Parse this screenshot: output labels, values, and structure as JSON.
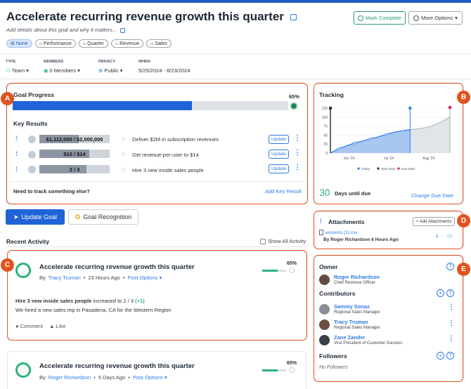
{
  "goal": {
    "title": "Accelerate recurring revenue growth this quarter",
    "subtitle": "Add details about this goal and why it matters...",
    "mark_complete": "Mark Complete",
    "more_options": "More Options",
    "tags": [
      "None",
      "Performance",
      "Quarter",
      "Revenue",
      "Sales"
    ]
  },
  "meta": {
    "type_label": "TYPE",
    "type_value": "Team",
    "members_label": "MEMBERS",
    "members_value": "0 Members",
    "privacy_label": "PRIVACY",
    "privacy_value": "Public",
    "when_label": "WHEN",
    "when_value": "5/25/2024 - 8/23/2024"
  },
  "badges": [
    "A",
    "B",
    "C",
    "D",
    "E"
  ],
  "progress": {
    "title": "Goal Progress",
    "percent_label": "65%",
    "percent": 0.65,
    "key_results_title": "Key Results",
    "key_results": [
      {
        "value": "$1,112,000 / $2,000,000",
        "fraction": 0.556,
        "text": "Deliver $2M in subscription revenues",
        "update": "Update"
      },
      {
        "value": "$10 / $14",
        "fraction": 0.714,
        "text": "Get revenue-per-user to $14",
        "update": "Update"
      },
      {
        "value": "2 / 3",
        "fraction": 0.667,
        "text": "Hire 3 new inside sales people",
        "update": "Update"
      }
    ],
    "need_track": "Need to track something else?",
    "add_kr": "Add Key Result"
  },
  "actions": {
    "update_goal": "Update Goal",
    "recognition": "Goal Recognition"
  },
  "activity": {
    "title": "Recent Activity",
    "show_all": "Show All Activity",
    "items": [
      {
        "title": "Accelerate recurring revenue growth this quarter",
        "by": "By",
        "author": "Tracy Truman",
        "time": "23 Hours Ago",
        "post_options": "Post Options",
        "percent_label": "65%",
        "percent": 0.65,
        "highlight_bold": "Hire 3 new inside sales people",
        "highlight_rest": "increased to 2 / 3",
        "delta": "(+1)",
        "body": "We hired a new sales rep in Pasadena, CA for the Western Region",
        "comment": "Comment",
        "like": "Like"
      },
      {
        "title": "Accelerate recurring revenue growth this quarter",
        "by": "By",
        "author": "Roger Richardson",
        "time": "5 Days Ago",
        "post_options": "Post Options",
        "percent_label": "65%",
        "percent": 0.65
      }
    ]
  },
  "tracking": {
    "title": "Tracking",
    "days_value": "30",
    "days_label": "Days until due",
    "change_due": "Change Due Date",
    "legend": [
      "Today",
      "Start Date",
      "Due Date"
    ],
    "colors": {
      "actual": "#2d7be5",
      "projected": "#b7bcc3",
      "today": "#2d7be5",
      "start": "#333333",
      "due": "#e5175f"
    }
  },
  "chart_data": {
    "type": "line",
    "title": "Tracking",
    "y_ticks": [
      0,
      25,
      50,
      75,
      100,
      125
    ],
    "x_ticks": [
      "Jun '24",
      "Jul '24",
      "Aug '24"
    ],
    "ylim": [
      0,
      125
    ],
    "series": [
      {
        "name": "Today",
        "x": [
          0,
          3,
          6,
          9,
          12,
          15,
          18,
          21,
          24,
          27,
          30
        ],
        "y": [
          0,
          12,
          20,
          28,
          33,
          40,
          45,
          52,
          58,
          62,
          65
        ]
      }
    ],
    "start_date_x": 0,
    "today_x": 30,
    "due_date_x": 45,
    "projection": {
      "x": [
        30,
        45
      ],
      "y": [
        65,
        100
      ]
    },
    "legend": [
      "Today",
      "Start Date",
      "Due Date"
    ],
    "grid": true
  },
  "attachments": {
    "title": "Attachments",
    "add": "+ Add Attachments",
    "file_name": "sessions (1).csv",
    "by_line": "By Roger Richardson 6 Hours Ago"
  },
  "people": {
    "owner_title": "Owner",
    "owner": {
      "name": "Roger Richardson",
      "role": "Chief Revenue Officer"
    },
    "contributors_title": "Contributors",
    "contributors": [
      {
        "name": "Sammy Sonaz",
        "role": "Regional Sales Manager"
      },
      {
        "name": "Tracy Truman",
        "role": "Regional Sales Manager"
      },
      {
        "name": "Zane Zander",
        "role": "Vice President of Customer Success"
      }
    ],
    "followers_title": "Followers",
    "no_followers": "No Followers"
  }
}
